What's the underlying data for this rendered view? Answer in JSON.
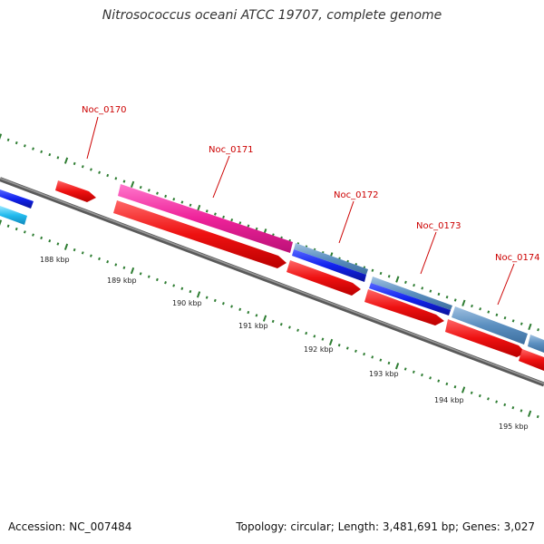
{
  "title": "Nitrosococcus oceani ATCC 19707, complete genome",
  "footer": {
    "accession": "Accession: NC_007484",
    "summary": "Topology: circular; Length: 3,481,691 bp; Genes: 3,027"
  },
  "colors": {
    "background": "#ffffff",
    "backbone": "#777777",
    "tick": "#2e7d32",
    "label": "#cc0000",
    "cds_red": "#ee1111",
    "magenta": "#ee2299",
    "steel_blue": "#5b8fc0",
    "blue": "#1122ee",
    "cyan": "#22bbee"
  },
  "kbp_labels": [
    "188 kbp",
    "189 kbp",
    "190 kbp",
    "191 kbp",
    "192 kbp",
    "193 kbp",
    "194 kbp",
    "195 kbp"
  ],
  "locus_tags": [
    "Noc_0170",
    "Noc_0171",
    "Noc_0172",
    "Noc_0173",
    "Noc_0174"
  ]
}
